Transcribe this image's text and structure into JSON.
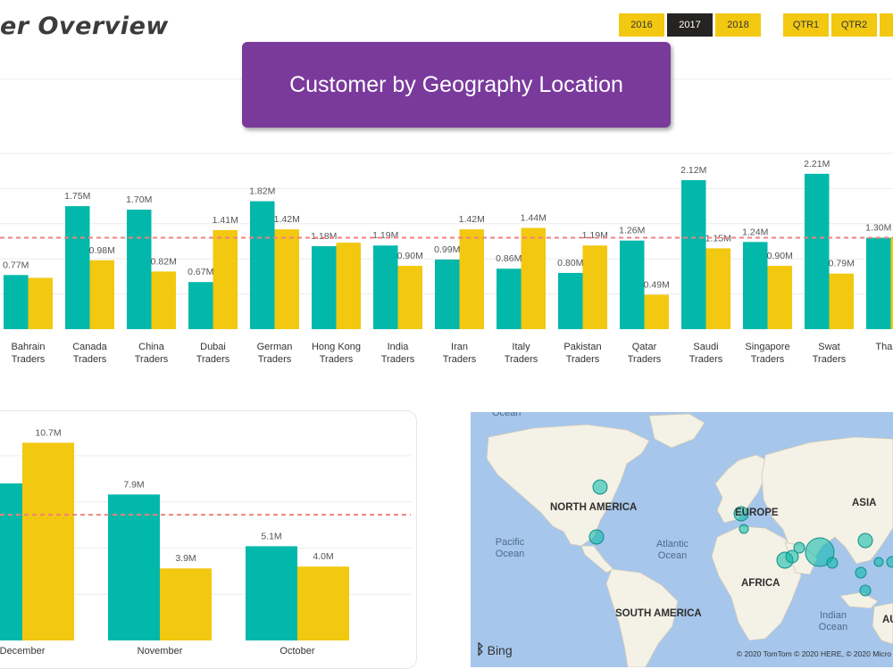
{
  "header": {
    "title": "er Overview",
    "banner": "Customer by Geography Location"
  },
  "slicers": {
    "years": [
      {
        "label": "2016",
        "selected": false
      },
      {
        "label": "2017",
        "selected": true
      },
      {
        "label": "2018",
        "selected": false
      }
    ],
    "quarters": [
      {
        "label": "QTR1",
        "selected": false
      },
      {
        "label": "QTR2",
        "selected": false
      },
      {
        "label": "",
        "selected": false
      }
    ]
  },
  "colors": {
    "series_a": "#01b8aa",
    "series_b": "#f2c811",
    "reference_line": "#f08080",
    "banner": "#7a3a9c",
    "selected_slicer": "#252423"
  },
  "map": {
    "land_labels": [
      "NORTH AMERICA",
      "EUROPE",
      "ASIA",
      "AFRICA",
      "SOUTH AMERICA",
      "AU"
    ],
    "sea_labels": [
      "Ocean",
      "Pacific\nOcean",
      "Atlantic\nOcean",
      "Indian\nOcean"
    ],
    "provider": "Bing",
    "copyright": "© 2020 TomTom © 2020 HERE, © 2020 Micro"
  },
  "chart_data": [
    {
      "type": "bar",
      "categories": [
        "Bahrain Traders",
        "Canada Traders",
        "China Traders",
        "Dubai Traders",
        "German Traders",
        "Hong Kong Traders",
        "India Traders",
        "Iran Traders",
        "Italy Traders",
        "Pakistan Traders",
        "Qatar Traders",
        "Saudi Traders",
        "Singapore Traders",
        "Swat Traders",
        "Thai Tr"
      ],
      "series": [
        {
          "values": [
            0.77,
            1.75,
            1.7,
            0.67,
            1.82,
            1.18,
            1.19,
            0.99,
            0.86,
            0.8,
            1.26,
            2.12,
            1.24,
            2.21,
            1.3
          ]
        },
        {
          "values": [
            0.73,
            0.98,
            0.82,
            1.41,
            1.42,
            1.23,
            0.9,
            1.42,
            1.44,
            1.19,
            0.49,
            1.15,
            0.9,
            0.79,
            1.31
          ]
        }
      ],
      "value_labels_a": [
        "0.77M",
        "1.75M",
        "1.70M",
        "0.67M",
        "1.82M",
        "1.18M",
        "1.19M",
        "0.99M",
        "0.86M",
        "0.80M",
        "1.26M",
        "2.12M",
        "1.24M",
        "2.21M",
        "1.30M"
      ],
      "value_labels_b": [
        "",
        "0.98M",
        "0.82M",
        "1.41M",
        "1.42M",
        "",
        "0.90M",
        "1.42M",
        "1.44M",
        "1.19M",
        "0.49M",
        "1.15M",
        "0.90M",
        "0.79M",
        ""
      ],
      "reference_line": 1.3,
      "ylim": [
        0,
        2.5
      ],
      "xlabel": "",
      "ylabel": ""
    },
    {
      "type": "bar",
      "categories": [
        "December",
        "November",
        "October"
      ],
      "series": [
        {
          "values": [
            8.5,
            7.9,
            5.1
          ]
        },
        {
          "values": [
            10.7,
            3.9,
            4.0
          ]
        }
      ],
      "value_labels_a": [
        "M",
        "7.9M",
        "5.1M"
      ],
      "value_labels_b": [
        "10.7M",
        "3.9M",
        "4.0M"
      ],
      "reference_line": 6.8,
      "ylim": [
        0,
        11.2
      ],
      "xlabel": "",
      "ylabel": ""
    }
  ]
}
